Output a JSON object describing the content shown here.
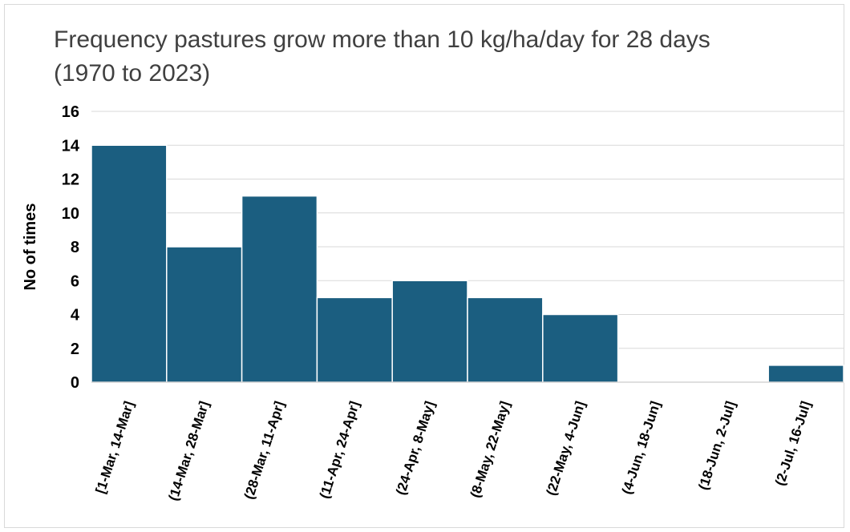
{
  "chart_data": {
    "type": "bar",
    "title_lines": [
      "Frequency  pastures grow more than 10 kg/ha/day for 28 days",
      "(1970 to 2023)"
    ],
    "xlabel": "",
    "ylabel": "No of times",
    "categories": [
      "[1-Mar, 14-Mar]",
      "(14-Mar, 28-Mar]",
      "(28-Mar, 11-Apr]",
      "(11-Apr, 24-Apr]",
      "(24-Apr, 8-May]",
      "(8-May, 22-May]",
      "(22-May, 4-Jun]",
      "(4-Jun, 18-Jun]",
      "(18-Jun, 2-Jul]",
      "(2-Jul, 16-Jul]"
    ],
    "values": [
      14,
      8,
      11,
      5,
      6,
      5,
      4,
      0,
      0,
      1
    ],
    "ylim": [
      0,
      16
    ],
    "yticks": [
      "0",
      "2",
      "4",
      "6",
      "8",
      "10",
      "12",
      "14",
      "16"
    ],
    "grid": true,
    "bar_color": "#1b5e80"
  }
}
